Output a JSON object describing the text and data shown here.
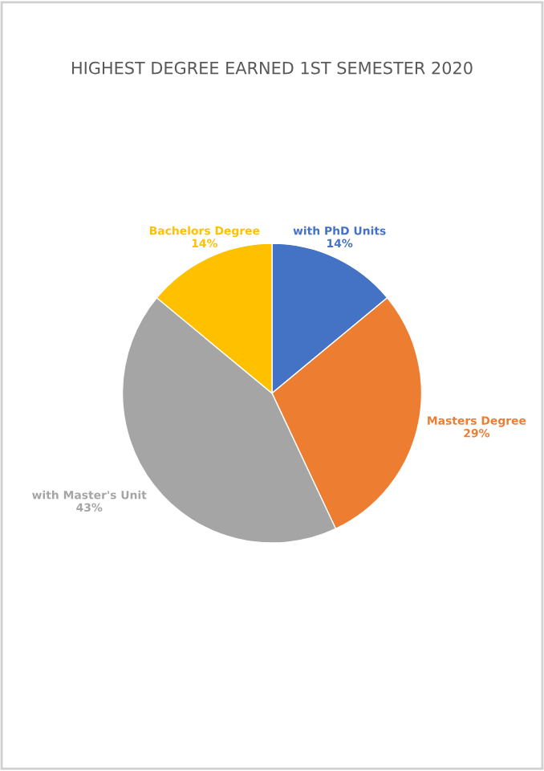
{
  "chart_data": {
    "type": "pie",
    "title": "HIGHEST DEGREE EARNED 1ST SEMESTER 2020",
    "categories": [
      "with PhD Units",
      "Masters Degree",
      "with Master's Unit",
      "Bachelors Degree"
    ],
    "values": [
      14,
      29,
      43,
      14
    ],
    "value_labels": [
      "14%",
      "29%",
      "43%",
      "14%"
    ],
    "colors": [
      "#4472c4",
      "#ed7d31",
      "#a5a5a5",
      "#ffc000"
    ],
    "legend": false
  }
}
